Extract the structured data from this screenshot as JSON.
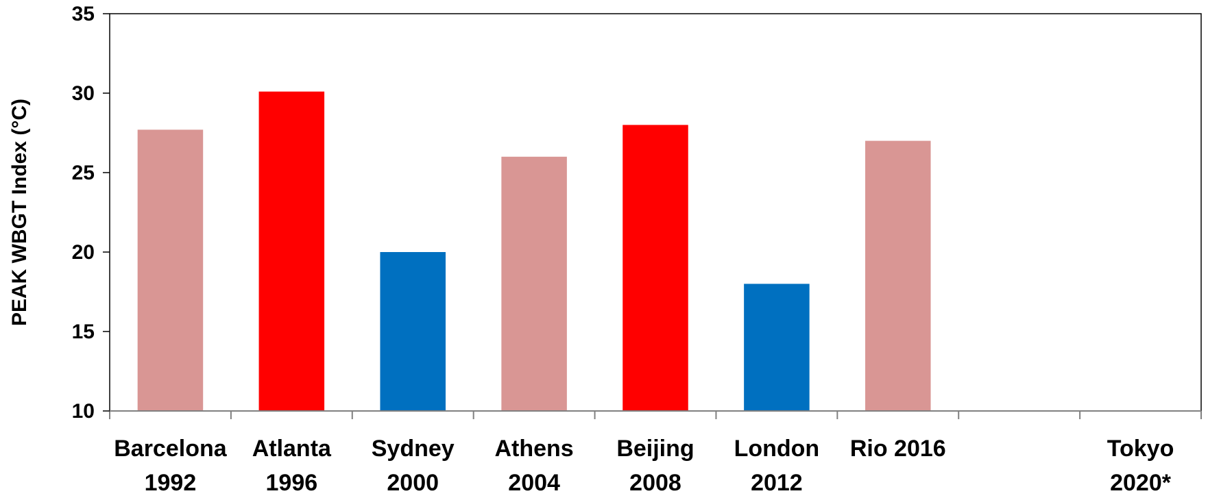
{
  "chart_data": {
    "type": "bar",
    "title": "",
    "xlabel": "",
    "ylabel": "PEAK WBGT Index (°C)",
    "ylim": [
      10,
      35
    ],
    "yticks": [
      10,
      15,
      20,
      25,
      30,
      35
    ],
    "grid": false,
    "legend": "none",
    "categories": [
      {
        "line1": "Barcelona",
        "line2": "1992"
      },
      {
        "line1": "Atlanta",
        "line2": "1996"
      },
      {
        "line1": "Sydney",
        "line2": "2000"
      },
      {
        "line1": "Athens",
        "line2": "2004"
      },
      {
        "line1": "Beijing",
        "line2": "2008"
      },
      {
        "line1": "London",
        "line2": "2012"
      },
      {
        "line1": "Rio 2016",
        "line2": ""
      },
      {
        "line1": "",
        "line2": ""
      },
      {
        "line1": "Tokyo",
        "line2": "2020*"
      }
    ],
    "values": [
      27.7,
      30.1,
      20.0,
      26.0,
      28.0,
      18.0,
      27.0,
      null,
      null
    ],
    "colors": [
      "#d99694",
      "#ff0000",
      "#0070c0",
      "#d99694",
      "#ff0000",
      "#0070c0",
      "#d99694",
      null,
      null
    ]
  }
}
